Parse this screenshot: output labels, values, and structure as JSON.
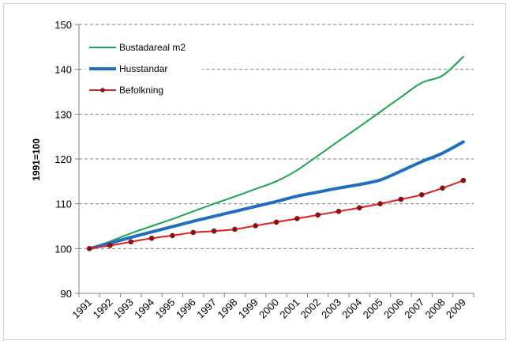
{
  "chart_data": {
    "type": "line",
    "title": "",
    "xlabel": "",
    "ylabel": "1991=100",
    "ylim": [
      90,
      150
    ],
    "yticks": [
      90,
      100,
      110,
      120,
      130,
      140,
      150
    ],
    "grid": "horizontal dashed",
    "legend_position": "top-left",
    "categories": [
      "1991",
      "1992",
      "1993",
      "1994",
      "1995",
      "1996",
      "1997",
      "1998",
      "1999",
      "2000",
      "2001",
      "2002",
      "2003",
      "2004",
      "2005",
      "2006",
      "2007",
      "2008",
      "2009"
    ],
    "series": [
      {
        "name": "Bustadareal m2",
        "color": "#1aa64a",
        "marker": "none",
        "values": [
          100,
          101.6,
          103.4,
          105.0,
          106.6,
          108.3,
          110.0,
          111.6,
          113.3,
          115.0,
          117.5,
          120.7,
          124.0,
          127.2,
          130.5,
          133.8,
          137.0,
          138.6,
          142.8
        ]
      },
      {
        "name": "Husstandar",
        "color": "#1f6fc0",
        "marker": "none",
        "values": [
          100,
          101.2,
          102.5,
          103.7,
          104.9,
          106.1,
          107.2,
          108.3,
          109.4,
          110.5,
          111.7,
          112.6,
          113.5,
          114.3,
          115.3,
          117.3,
          119.4,
          121.3,
          123.8
        ]
      },
      {
        "name": "Befolkning",
        "color": "#e02020",
        "marker": "circle",
        "values": [
          100,
          100.7,
          101.5,
          102.3,
          102.9,
          103.6,
          103.9,
          104.3,
          105.1,
          105.9,
          106.7,
          107.5,
          108.3,
          109.1,
          110.0,
          111.0,
          112.0,
          113.5,
          115.2
        ]
      }
    ]
  }
}
